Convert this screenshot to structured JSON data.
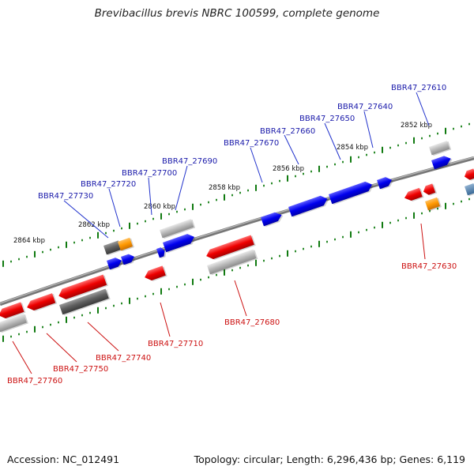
{
  "title": "Brevibacillus brevis NBRC 100599, complete genome",
  "footer": {
    "accession": "Accession: NC_012491",
    "summary": "Topology: circular; Length: 6,296,436 bp; Genes: 6,119"
  },
  "colors": {
    "forward_gene": "#0000ee",
    "reverse_gene": "#ee0000",
    "pseudo_gene": "#b0b0b0",
    "dark_gene": "#606060",
    "rna_gene": "#ff9900",
    "ticks": "#008800",
    "backbone": "#808080"
  },
  "scale_labels": [
    "2852 kbp",
    "2854 kbp",
    "2856 kbp",
    "2858 kbp",
    "2860 kbp",
    "2862 kbp",
    "2864 kbp"
  ],
  "genes_top": [
    "BBR47_27610",
    "BBR47_27640",
    "BBR47_27650",
    "BBR47_27660",
    "BBR47_27670",
    "BBR47_27690",
    "BBR47_27700",
    "BBR47_27720",
    "BBR47_27730"
  ],
  "genes_bottom": [
    "BBR47_27630",
    "BBR47_27680",
    "BBR47_27710",
    "BBR47_27740",
    "BBR47_27750",
    "BBR47_27760"
  ]
}
